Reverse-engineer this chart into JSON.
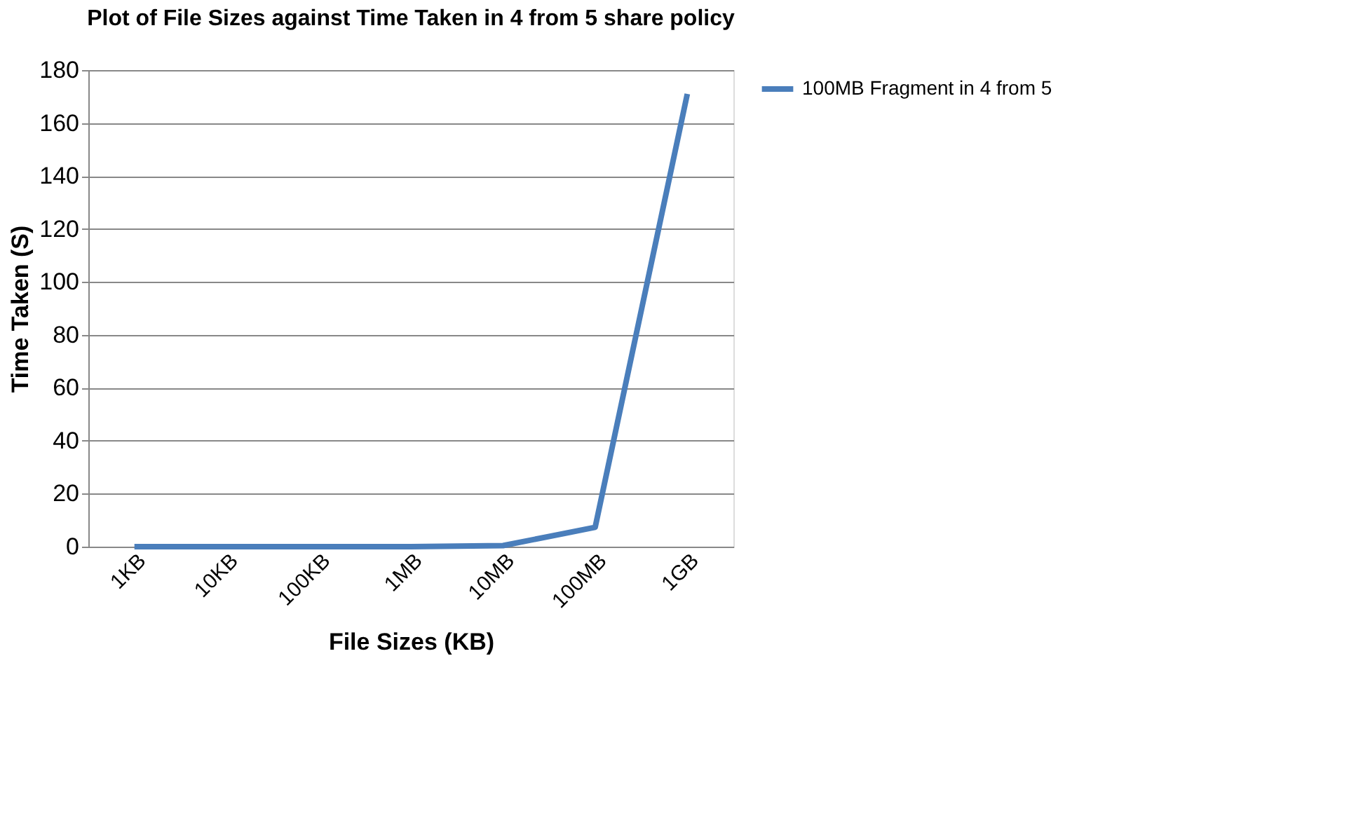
{
  "chart_data": {
    "type": "line",
    "title": "Plot of File Sizes against Time Taken in 4 from 5 share policy",
    "xlabel": "File Sizes (KB)",
    "ylabel": "Time Taken (S)",
    "categories": [
      "1KB",
      "10KB",
      "100KB",
      "1MB",
      "10MB",
      "100MB",
      "1GB"
    ],
    "series": [
      {
        "name": "100MB Fragment in 4 from 5",
        "color": "#4a7ebb",
        "values": [
          0,
          0,
          0,
          0,
          0.4,
          7.3,
          171
        ]
      }
    ],
    "ylim": [
      0,
      180
    ],
    "yticks": [
      0,
      20,
      40,
      60,
      80,
      100,
      120,
      140,
      160,
      180
    ],
    "grid": "y",
    "legend": "right",
    "marker": "none",
    "line_style": "solid"
  }
}
